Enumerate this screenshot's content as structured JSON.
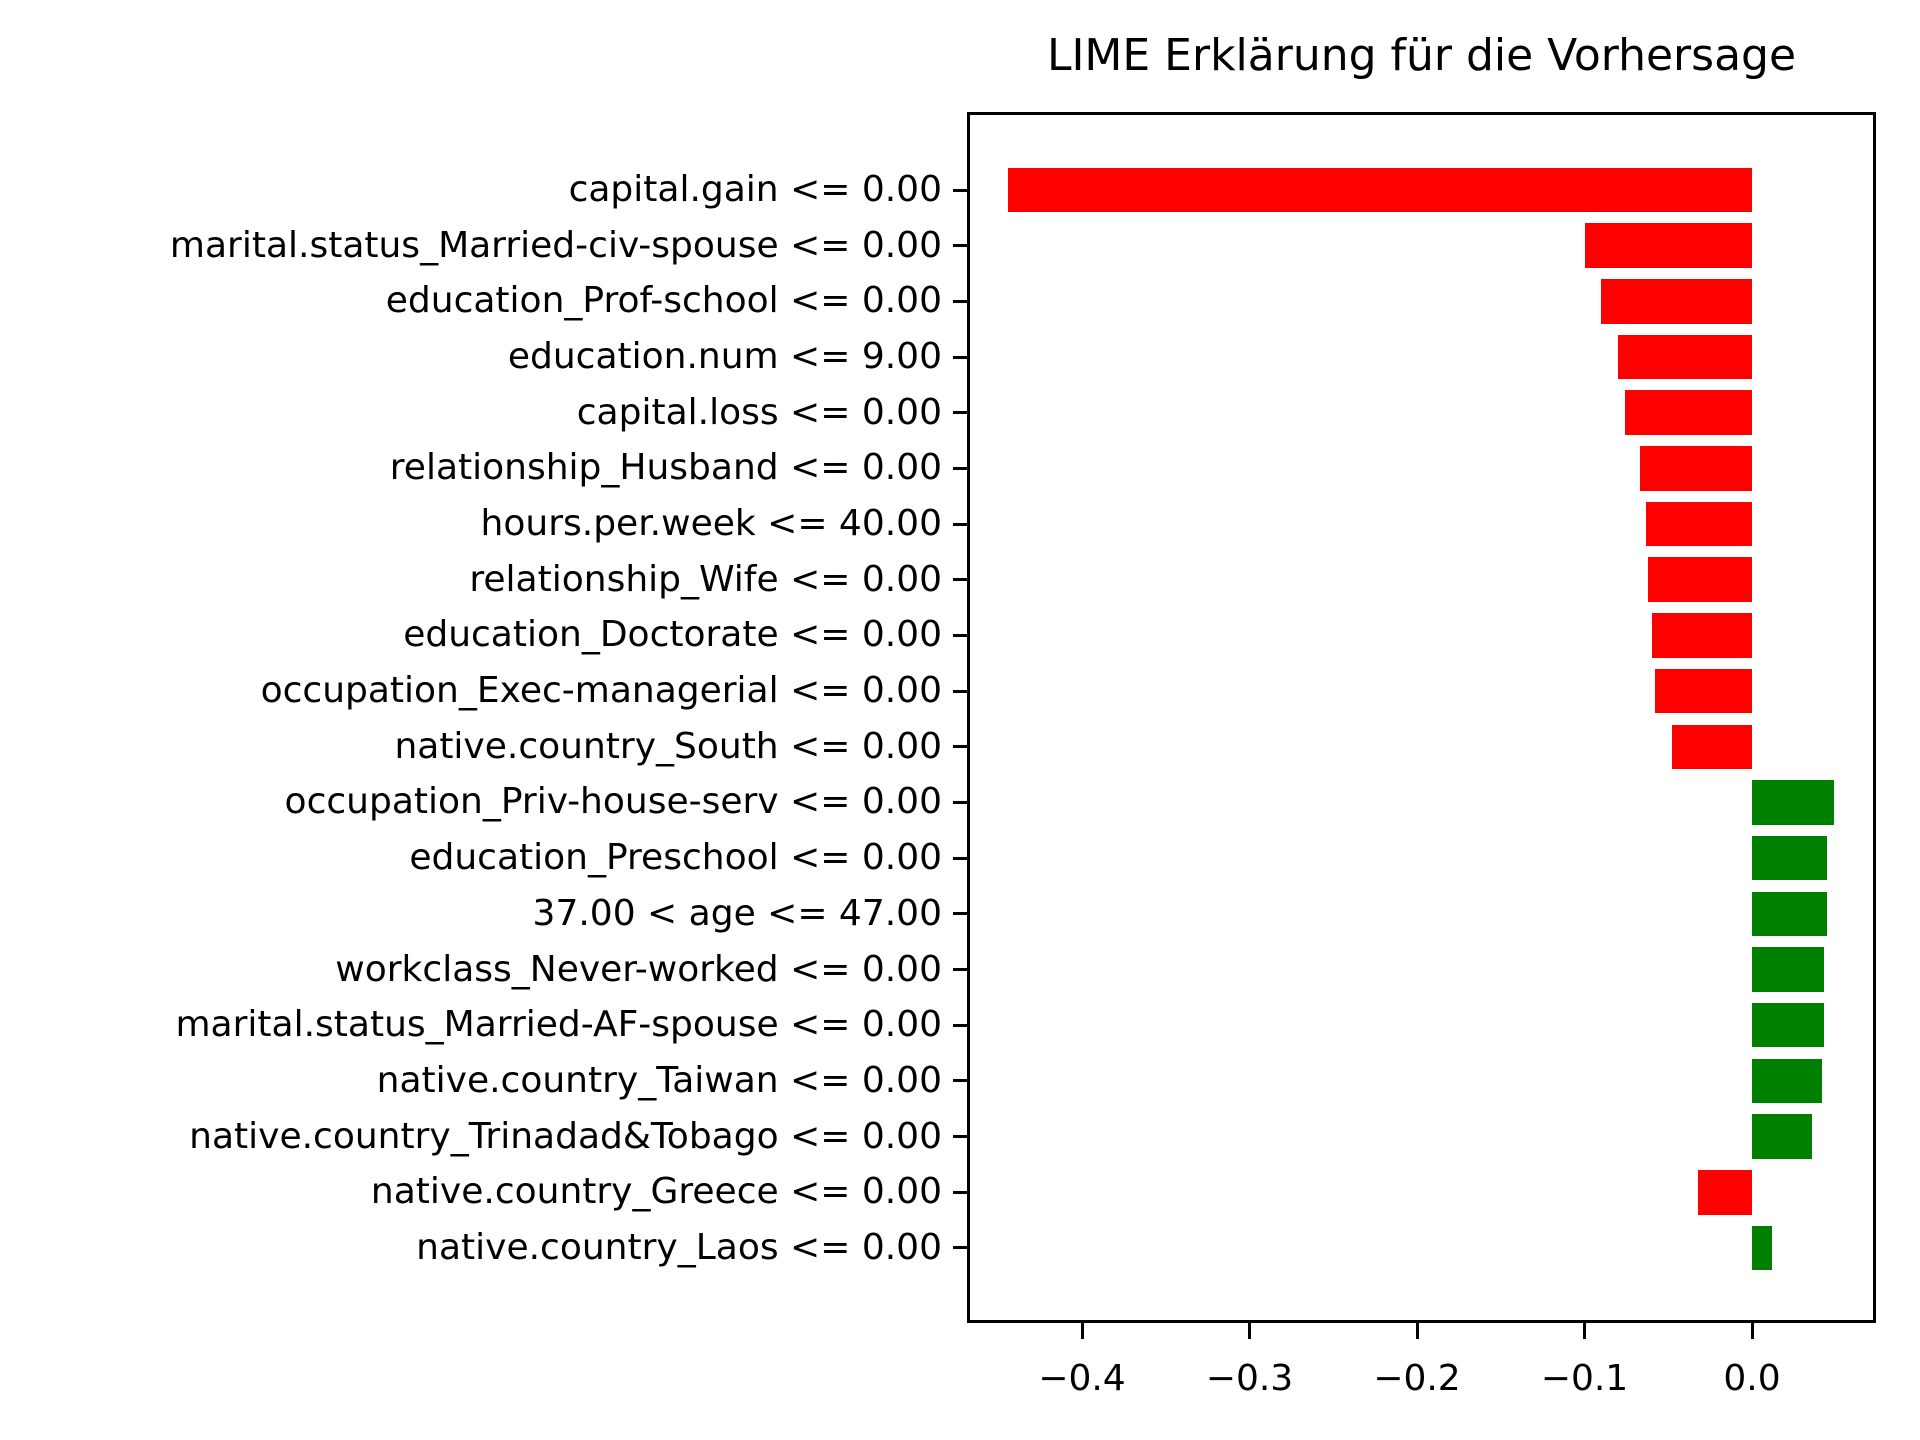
{
  "title": "LIME Erklärung für die Vorhersage",
  "colors": {
    "negative_bar": "#ff0000",
    "positive_bar": "#008000",
    "axis": "#000000",
    "background": "#ffffff"
  },
  "chart_data": {
    "type": "bar",
    "orientation": "horizontal",
    "title": "LIME Erklärung für die Vorhersage",
    "xlabel": "",
    "ylabel": "",
    "grid": false,
    "legend": "none",
    "xlim": [
      -0.469,
      0.074
    ],
    "x_ticks": [
      -0.4,
      -0.3,
      -0.2,
      -0.1,
      0.0
    ],
    "x_tick_labels": [
      "−0.4",
      "−0.3",
      "−0.2",
      "−0.1",
      "0.0"
    ],
    "color_rule": "negative values red (#ff0000), positive values green (#008000)",
    "categories": [
      "capital.gain <= 0.00",
      "marital.status_Married-civ-spouse <= 0.00",
      "education_Prof-school <= 0.00",
      "education.num <= 9.00",
      "capital.loss <= 0.00",
      "relationship_Husband <= 0.00",
      "hours.per.week <= 40.00",
      "relationship_Wife <= 0.00",
      "education_Doctorate <= 0.00",
      "occupation_Exec-managerial <= 0.00",
      "native.country_South <= 0.00",
      "occupation_Priv-house-serv <= 0.00",
      "education_Preschool <= 0.00",
      "37.00 < age <= 47.00",
      "workclass_Never-worked <= 0.00",
      "marital.status_Married-AF-spouse <= 0.00",
      "native.country_Taiwan <= 0.00",
      "native.country_Trinadad&Tobago <= 0.00",
      "native.country_Greece <= 0.00",
      "native.country_Laos <= 0.00"
    ],
    "values": [
      -0.444,
      -0.1,
      -0.09,
      -0.08,
      -0.076,
      -0.067,
      -0.063,
      -0.062,
      -0.06,
      -0.058,
      -0.048,
      0.049,
      0.045,
      0.045,
      0.043,
      0.043,
      0.042,
      0.036,
      -0.032,
      0.012
    ]
  }
}
